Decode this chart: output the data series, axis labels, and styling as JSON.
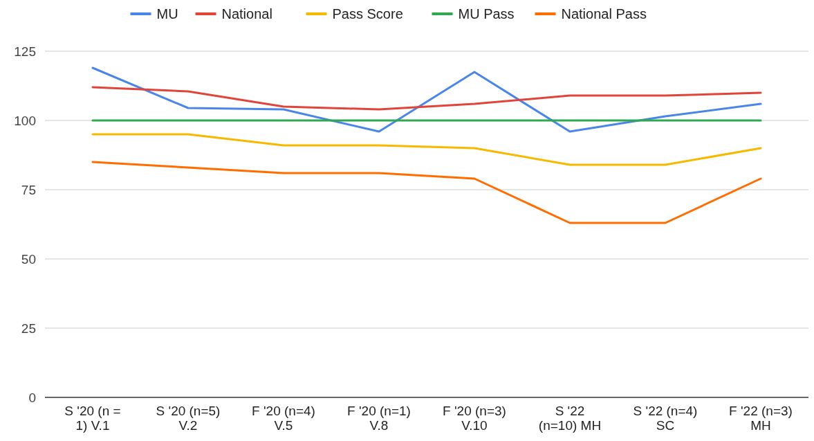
{
  "chart_data": {
    "type": "line",
    "categories": [
      "S '20 (n = 1) V.1",
      "S '20 (n=5) V.2",
      "F '20 (n=4) V.5",
      "F '20 (n=1) V.8",
      "F '20 (n=3) V.10",
      "S '22 (n=10) MH",
      "S '22 (n=4) SC",
      "F '22 (n=3) MH"
    ],
    "series": [
      {
        "name": "MU",
        "color": "#4a86e8",
        "values": [
          119,
          104.5,
          104,
          96,
          117.5,
          96,
          101.5,
          106
        ]
      },
      {
        "name": "National",
        "color": "#e0443a",
        "values": [
          112,
          110.5,
          105,
          104,
          106,
          109,
          109,
          110
        ]
      },
      {
        "name": "Pass Score",
        "color": "#f6b900",
        "values": [
          95,
          95,
          91,
          91,
          90,
          84,
          84,
          90
        ]
      },
      {
        "name": "MU Pass",
        "color": "#2fa84f",
        "values": [
          100,
          100,
          100,
          100,
          100,
          100,
          100,
          100
        ]
      },
      {
        "name": "National Pass",
        "color": "#ff6d01",
        "values": [
          85,
          83,
          81,
          81,
          79,
          63,
          63,
          79
        ]
      }
    ],
    "ylim": [
      0,
      125
    ],
    "yticks": [
      0,
      25,
      50,
      75,
      100,
      125
    ],
    "grid": "y",
    "legend": "top",
    "marker": "none",
    "line_style": "solid"
  }
}
